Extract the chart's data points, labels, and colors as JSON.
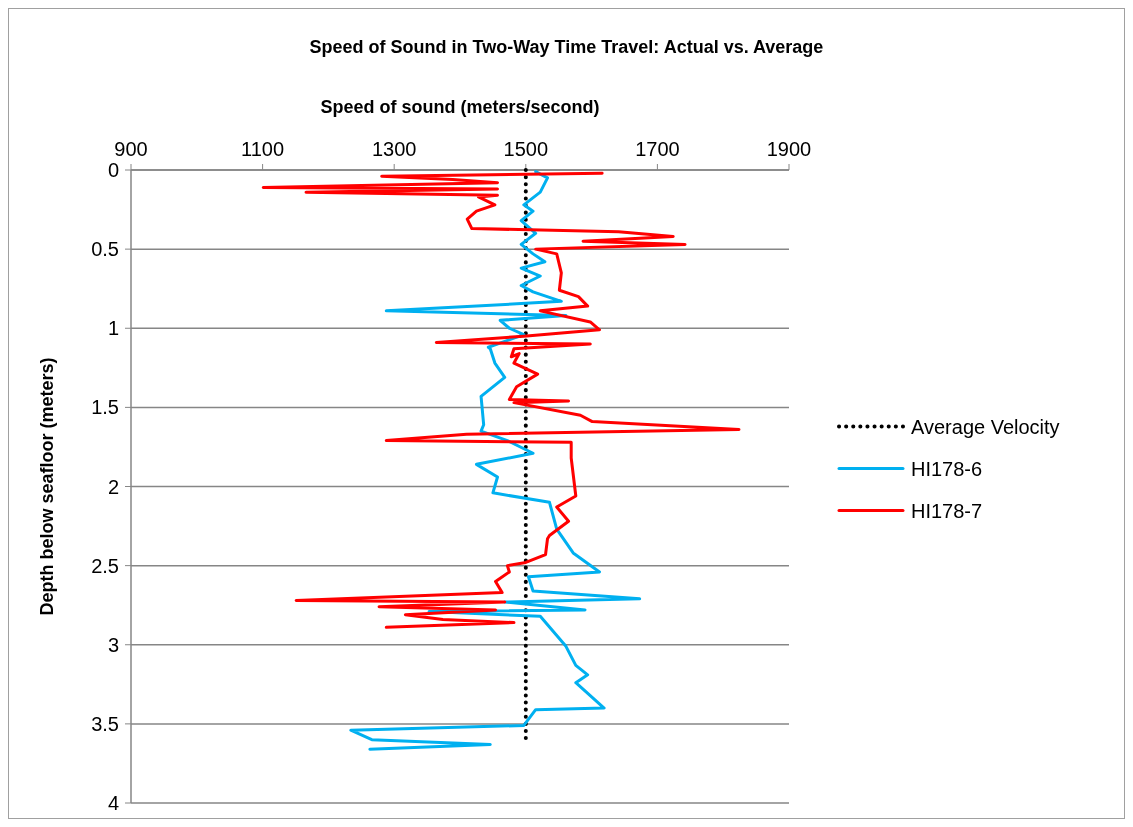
{
  "chart_data": {
    "type": "line",
    "title": "Speed of Sound in Two-Way Time Travel: Actual vs. Average",
    "xlabel": "Speed of sound (meters/second)",
    "ylabel": "Depth below seafloor (meters)",
    "xlim": [
      900,
      1900
    ],
    "xticks": [
      900,
      1100,
      1300,
      1500,
      1700,
      1900
    ],
    "ylim": [
      4,
      0
    ],
    "yticks": [
      0,
      0.5,
      1,
      1.5,
      2,
      2.5,
      3,
      3.5,
      4
    ],
    "grid": "y",
    "legend": "right",
    "series": [
      {
        "name": "Average Velocity",
        "color": "#000000",
        "line_style": "dotted",
        "x": [
          1500,
          1500
        ],
        "values": [
          0,
          3.61
        ]
      },
      {
        "name": "HI178-6",
        "color": "#00b0f0",
        "x": [
          1515,
          1533,
          1522,
          1497,
          1511,
          1493,
          1515,
          1493,
          1511,
          1529,
          1493,
          1522,
          1493,
          1511,
          1554,
          1288,
          1561,
          1461,
          1475,
          1497,
          1443,
          1446,
          1453,
          1468,
          1432,
          1436,
          1432,
          1472,
          1511,
          1425,
          1457,
          1450,
          1536,
          1547,
          1572,
          1612,
          1504,
          1511,
          1673,
          1468,
          1590,
          1353,
          1522,
          1561,
          1576,
          1594,
          1576,
          1619,
          1515,
          1497,
          1234,
          1266,
          1446,
          1263
        ],
        "values": [
          0.01,
          0.05,
          0.14,
          0.22,
          0.26,
          0.32,
          0.4,
          0.47,
          0.53,
          0.58,
          0.62,
          0.67,
          0.73,
          0.77,
          0.83,
          0.89,
          0.92,
          0.95,
          1.0,
          1.04,
          1.12,
          1.13,
          1.22,
          1.31,
          1.43,
          1.61,
          1.65,
          1.71,
          1.79,
          1.86,
          1.94,
          2.04,
          2.1,
          2.27,
          2.42,
          2.54,
          2.57,
          2.66,
          2.71,
          2.73,
          2.78,
          2.79,
          2.82,
          3.01,
          3.13,
          3.19,
          3.24,
          3.4,
          3.41,
          3.51,
          3.54,
          3.6,
          3.63,
          3.66
        ]
      },
      {
        "name": "HI178-7",
        "color": "#ff0000",
        "x": [
          1616,
          1281,
          1389,
          1457,
          1101,
          1457,
          1166,
          1457,
          1428,
          1453,
          1425,
          1411,
          1418,
          1641,
          1724,
          1587,
          1742,
          1515,
          1547,
          1554,
          1551,
          1580,
          1594,
          1522,
          1598,
          1612,
          1497,
          1364,
          1598,
          1482,
          1478,
          1490,
          1482,
          1518,
          1486,
          1475,
          1565,
          1482,
          1583,
          1601,
          1824,
          1410,
          1288,
          1569,
          1569,
          1576,
          1547,
          1565,
          1536,
          1533,
          1530,
          1500,
          1472,
          1475,
          1454,
          1464,
          1151,
          1468,
          1277,
          1454,
          1317,
          1374,
          1482,
          1288
        ],
        "values": [
          0.02,
          0.04,
          0.06,
          0.08,
          0.11,
          0.12,
          0.14,
          0.16,
          0.17,
          0.22,
          0.26,
          0.31,
          0.37,
          0.39,
          0.42,
          0.45,
          0.47,
          0.5,
          0.53,
          0.65,
          0.76,
          0.8,
          0.86,
          0.89,
          0.96,
          1.01,
          1.05,
          1.09,
          1.1,
          1.13,
          1.18,
          1.16,
          1.22,
          1.29,
          1.37,
          1.45,
          1.46,
          1.47,
          1.55,
          1.59,
          1.64,
          1.67,
          1.71,
          1.72,
          1.82,
          2.06,
          2.13,
          2.22,
          2.31,
          2.33,
          2.43,
          2.48,
          2.5,
          2.54,
          2.6,
          2.67,
          2.72,
          2.73,
          2.76,
          2.78,
          2.81,
          2.84,
          2.86,
          2.89
        ]
      }
    ]
  }
}
